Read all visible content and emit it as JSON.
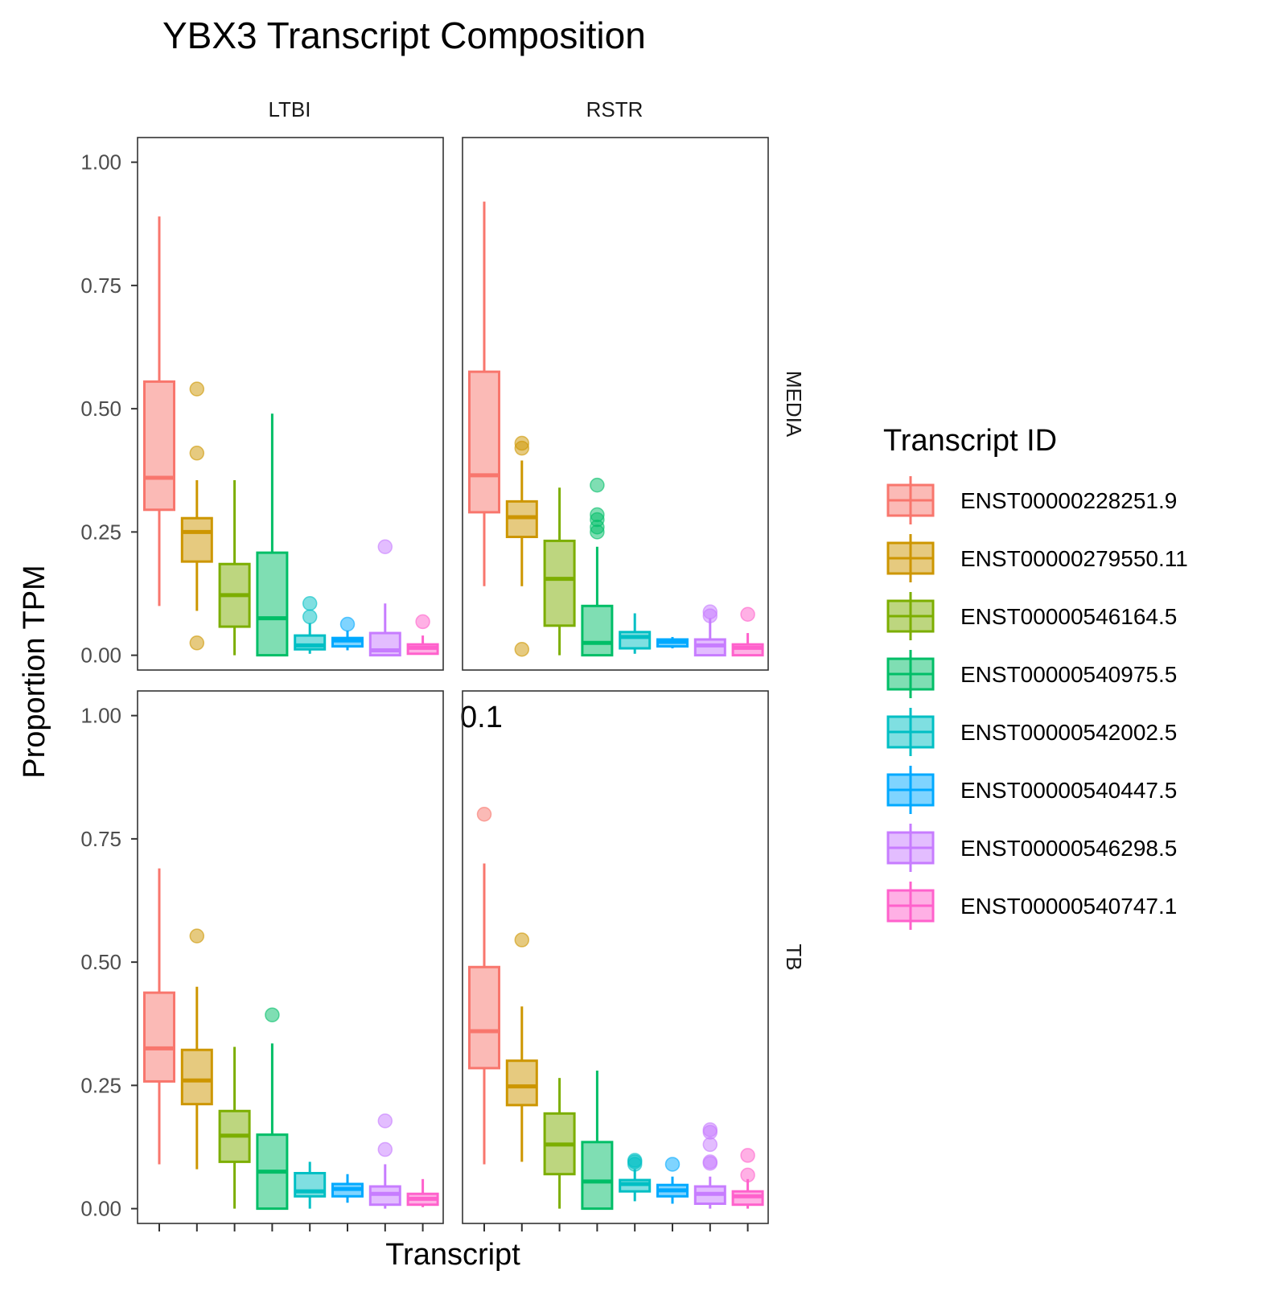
{
  "chart_data": {
    "type": "boxplot",
    "title": "YBX3 Transcript Composition",
    "xlabel": "Transcript",
    "ylabel": "Proportion TPM",
    "ylim": [
      -0.03,
      1.05
    ],
    "yticks": [
      "0.00",
      "0.25",
      "0.50",
      "0.75",
      "1.00"
    ],
    "ytick_values": [
      0,
      0.25,
      0.5,
      0.75,
      1.0
    ],
    "grid": false,
    "legend": {
      "title": "Transcript ID",
      "position": "right"
    },
    "facet_columns": [
      "LTBI",
      "RSTR"
    ],
    "facet_rows": [
      "MEDIA",
      "TB"
    ],
    "stray_label": "0.1",
    "series": [
      {
        "name": "ENST00000228251.9",
        "color": "#F8766D"
      },
      {
        "name": "ENST00000279550.11",
        "color": "#CD9600"
      },
      {
        "name": "ENST00000546164.5",
        "color": "#7CAE00"
      },
      {
        "name": "ENST00000540975.5",
        "color": "#00BE67"
      },
      {
        "name": "ENST00000542002.5",
        "color": "#00BFC4"
      },
      {
        "name": "ENST00000540447.5",
        "color": "#00A9FF"
      },
      {
        "name": "ENST00000546298.5",
        "color": "#C77CFF"
      },
      {
        "name": "ENST00000540747.1",
        "color": "#FF61CC"
      }
    ],
    "panels": [
      {
        "column": "LTBI",
        "row": "MEDIA",
        "boxes": [
          {
            "whisker_low": 0.1,
            "q1": 0.295,
            "median": 0.36,
            "q3": 0.555,
            "whisker_high": 0.89,
            "outliers": []
          },
          {
            "whisker_low": 0.09,
            "q1": 0.19,
            "median": 0.25,
            "q3": 0.278,
            "whisker_high": 0.355,
            "outliers": [
              0.54,
              0.41,
              0.025
            ]
          },
          {
            "whisker_low": 0.0,
            "q1": 0.058,
            "median": 0.122,
            "q3": 0.185,
            "whisker_high": 0.355,
            "outliers": []
          },
          {
            "whisker_low": 0.0,
            "q1": 0.0,
            "median": 0.075,
            "q3": 0.208,
            "whisker_high": 0.49,
            "outliers": []
          },
          {
            "whisker_low": 0.003,
            "q1": 0.012,
            "median": 0.02,
            "q3": 0.04,
            "whisker_high": 0.065,
            "outliers": [
              0.105,
              0.078
            ]
          },
          {
            "whisker_low": 0.01,
            "q1": 0.018,
            "median": 0.03,
            "q3": 0.035,
            "whisker_high": 0.05,
            "outliers": [
              0.063
            ]
          },
          {
            "whisker_low": 0.0,
            "q1": 0.0,
            "median": 0.01,
            "q3": 0.045,
            "whisker_high": 0.105,
            "outliers": [
              0.22
            ]
          },
          {
            "whisker_low": 0.002,
            "q1": 0.003,
            "median": 0.015,
            "q3": 0.022,
            "whisker_high": 0.04,
            "outliers": [
              0.068
            ]
          }
        ]
      },
      {
        "column": "RSTR",
        "row": "MEDIA",
        "boxes": [
          {
            "whisker_low": 0.14,
            "q1": 0.29,
            "median": 0.365,
            "q3": 0.575,
            "whisker_high": 0.92,
            "outliers": []
          },
          {
            "whisker_low": 0.14,
            "q1": 0.24,
            "median": 0.28,
            "q3": 0.312,
            "whisker_high": 0.395,
            "outliers": [
              0.43,
              0.42,
              0.012
            ]
          },
          {
            "whisker_low": 0.0,
            "q1": 0.06,
            "median": 0.155,
            "q3": 0.232,
            "whisker_high": 0.34,
            "outliers": []
          },
          {
            "whisker_low": 0.0,
            "q1": 0.0,
            "median": 0.025,
            "q3": 0.1,
            "whisker_high": 0.22,
            "outliers": [
              0.345,
              0.285,
              0.275,
              0.26,
              0.25
            ]
          },
          {
            "whisker_low": 0.003,
            "q1": 0.014,
            "median": 0.037,
            "q3": 0.047,
            "whisker_high": 0.085,
            "outliers": []
          },
          {
            "whisker_low": 0.014,
            "q1": 0.018,
            "median": 0.027,
            "q3": 0.032,
            "whisker_high": 0.037,
            "outliers": []
          },
          {
            "whisker_low": 0.0,
            "q1": 0.0,
            "median": 0.02,
            "q3": 0.032,
            "whisker_high": 0.075,
            "outliers": [
              0.088,
              0.08
            ]
          },
          {
            "whisker_low": 0.0,
            "q1": 0.0,
            "median": 0.015,
            "q3": 0.022,
            "whisker_high": 0.045,
            "outliers": [
              0.083
            ]
          }
        ]
      },
      {
        "column": "LTBI",
        "row": "TB",
        "boxes": [
          {
            "whisker_low": 0.09,
            "q1": 0.258,
            "median": 0.325,
            "q3": 0.438,
            "whisker_high": 0.69,
            "outliers": []
          },
          {
            "whisker_low": 0.08,
            "q1": 0.212,
            "median": 0.26,
            "q3": 0.322,
            "whisker_high": 0.45,
            "outliers": [
              0.553
            ]
          },
          {
            "whisker_low": 0.0,
            "q1": 0.095,
            "median": 0.148,
            "q3": 0.198,
            "whisker_high": 0.328,
            "outliers": []
          },
          {
            "whisker_low": 0.0,
            "q1": 0.0,
            "median": 0.075,
            "q3": 0.15,
            "whisker_high": 0.335,
            "outliers": [
              0.393
            ]
          },
          {
            "whisker_low": 0.0,
            "q1": 0.025,
            "median": 0.035,
            "q3": 0.072,
            "whisker_high": 0.095,
            "outliers": []
          },
          {
            "whisker_low": 0.012,
            "q1": 0.025,
            "median": 0.04,
            "q3": 0.05,
            "whisker_high": 0.07,
            "outliers": []
          },
          {
            "whisker_low": 0.0,
            "q1": 0.008,
            "median": 0.03,
            "q3": 0.045,
            "whisker_high": 0.09,
            "outliers": [
              0.178,
              0.12
            ]
          },
          {
            "whisker_low": 0.003,
            "q1": 0.008,
            "median": 0.02,
            "q3": 0.03,
            "whisker_high": 0.06,
            "outliers": []
          }
        ]
      },
      {
        "column": "RSTR",
        "row": "TB",
        "boxes": [
          {
            "whisker_low": 0.09,
            "q1": 0.285,
            "median": 0.36,
            "q3": 0.49,
            "whisker_high": 0.7,
            "outliers": [
              0.8
            ]
          },
          {
            "whisker_low": 0.095,
            "q1": 0.21,
            "median": 0.248,
            "q3": 0.3,
            "whisker_high": 0.41,
            "outliers": [
              0.545
            ]
          },
          {
            "whisker_low": 0.0,
            "q1": 0.07,
            "median": 0.13,
            "q3": 0.193,
            "whisker_high": 0.265,
            "outliers": []
          },
          {
            "whisker_low": 0.0,
            "q1": 0.0,
            "median": 0.055,
            "q3": 0.135,
            "whisker_high": 0.28,
            "outliers": []
          },
          {
            "whisker_low": 0.015,
            "q1": 0.035,
            "median": 0.05,
            "q3": 0.058,
            "whisker_high": 0.08,
            "outliers": [
              0.098,
              0.095,
              0.09
            ]
          },
          {
            "whisker_low": 0.01,
            "q1": 0.025,
            "median": 0.037,
            "q3": 0.048,
            "whisker_high": 0.065,
            "outliers": [
              0.09
            ]
          },
          {
            "whisker_low": 0.0,
            "q1": 0.01,
            "median": 0.03,
            "q3": 0.045,
            "whisker_high": 0.065,
            "outliers": [
              0.16,
              0.155,
              0.13,
              0.095,
              0.092
            ]
          },
          {
            "whisker_low": 0.0,
            "q1": 0.008,
            "median": 0.025,
            "q3": 0.035,
            "whisker_high": 0.06,
            "outliers": [
              0.108,
              0.068
            ]
          }
        ]
      }
    ]
  }
}
